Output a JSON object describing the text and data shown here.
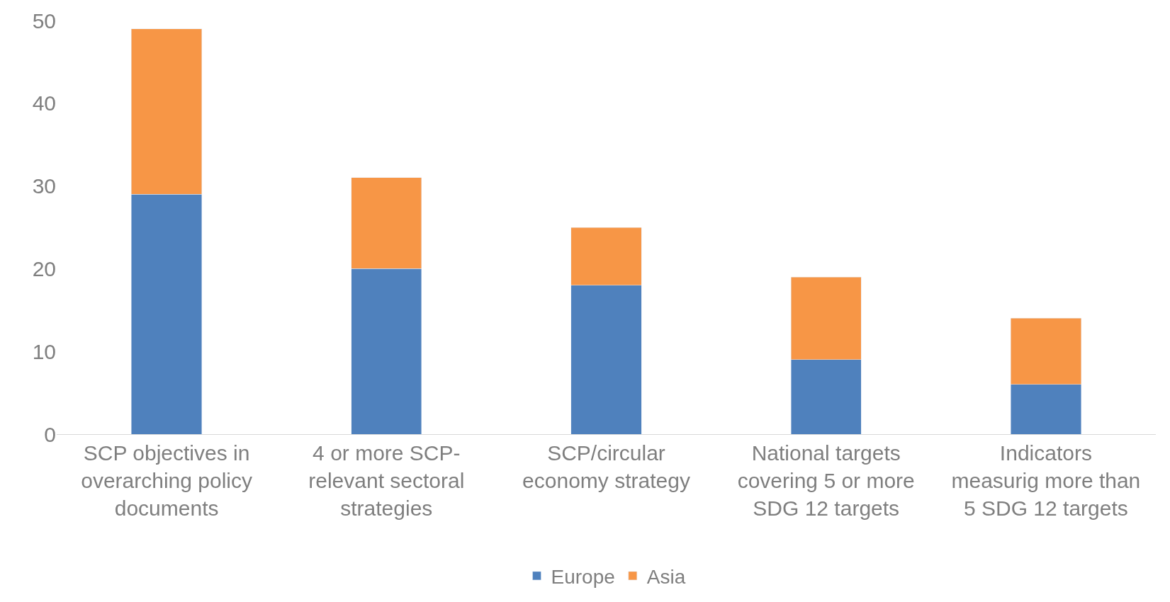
{
  "chart_data": {
    "type": "bar",
    "stacked": true,
    "categories": [
      "SCP objectives in overarching policy documents",
      "4 or more SCP-relevant sectoral strategies",
      "SCP/circular economy strategy",
      "National targets covering 5 or more SDG 12 targets",
      "Indicators measurig more than 5 SDG 12 targets"
    ],
    "series": [
      {
        "name": "Europe",
        "color": "#4f81bd",
        "values": [
          29,
          20,
          18,
          9,
          6
        ]
      },
      {
        "name": "Asia",
        "color": "#f79646",
        "values": [
          20,
          11,
          7,
          10,
          8
        ]
      }
    ],
    "ylim": [
      0,
      50
    ],
    "yticks": [
      0,
      10,
      20,
      30,
      40,
      50
    ],
    "grid": false,
    "legend": "bottom"
  }
}
